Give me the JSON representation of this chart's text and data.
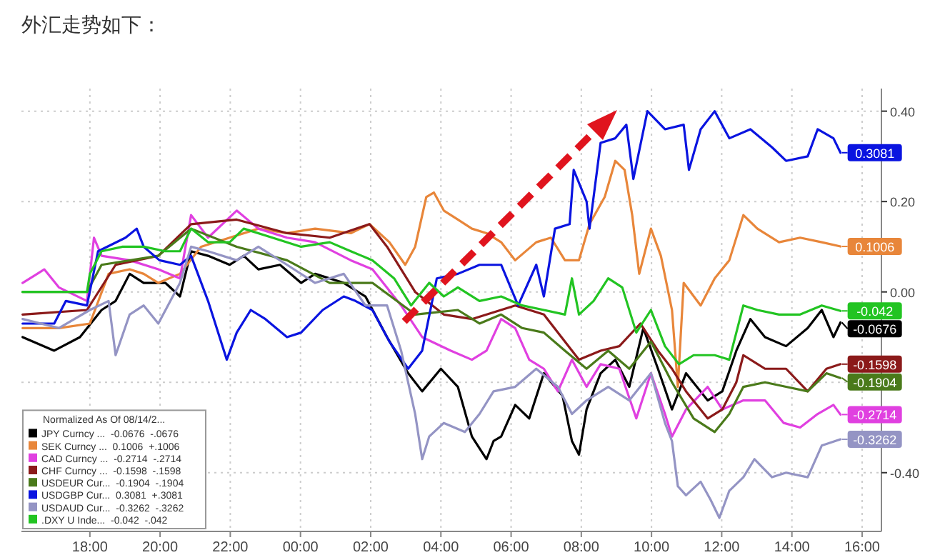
{
  "chart_data": {
    "type": "line",
    "title": "外汇走势如下：",
    "legend_title": "Normalized As Of 08/14/2...",
    "legend": "bottom left",
    "grid": true,
    "xlim": [
      "--08-14T16:03",
      "--08-15T16:33"
    ],
    "ylim": [
      -0.53,
      0.45
    ],
    "xticks": [
      {
        "value": "--08-14T18:00",
        "label": "18:00"
      },
      {
        "value": "--08-14T20:00",
        "label": "20:00"
      },
      {
        "value": "--08-14T22:00",
        "label": "22:00"
      },
      {
        "value": "--08-15T00:00",
        "label": "00:00"
      },
      {
        "value": "--08-15T02:00",
        "label": "02:00"
      },
      {
        "value": "--08-15T04:00",
        "label": "04:00"
      },
      {
        "value": "--08-15T06:00",
        "label": "06:00"
      },
      {
        "value": "--08-15T08:00",
        "label": "08:00"
      },
      {
        "value": "--08-15T10:00",
        "label": "10:00"
      },
      {
        "value": "--08-15T12:00",
        "label": "12:00"
      },
      {
        "value": "--08-15T14:00",
        "label": "14:00"
      },
      {
        "value": "--08-15T16:00",
        "label": "16:00"
      }
    ],
    "yticks": [
      {
        "value": 0.4,
        "label": "0.40"
      },
      {
        "value": 0.2,
        "label": "0.20"
      },
      {
        "value": 0,
        "label": "0.00"
      },
      {
        "value": -0.2,
        "label": null
      },
      {
        "value": -0.4,
        "label": "-0.40"
      }
    ],
    "series": [
      {
        "name": "JPY Curncy ...  -0.0676  -.0676",
        "color": "#000000",
        "x": [
          "--08-14T16:05",
          "--08-14T16:59",
          "--08-14T17:43",
          "--08-14T18:20",
          "--08-14T18:44",
          "--08-14T19:08",
          "--08-14T19:32",
          "--08-14T20:09",
          "--08-14T20:34",
          "--08-14T20:53",
          "--08-14T21:22",
          "--08-14T21:59",
          "--08-14T22:23",
          "--08-14T22:48",
          "--08-14T23:25",
          "--08-15T00:01",
          "--08-15T00:25",
          "--08-15T01:14",
          "--08-15T01:51",
          "--08-15T02:28",
          "--08-15T03:04",
          "--08-15T03:28",
          "--08-15T04:00",
          "--08-15T04:29",
          "--08-15T04:53",
          "--08-15T05:18",
          "--08-15T05:30",
          "--08-15T05:43",
          "--08-15T06:07",
          "--08-15T06:31",
          "--08-15T06:56",
          "--08-15T07:28",
          "--08-15T07:44",
          "--08-15T07:56",
          "--08-15T08:09",
          "--08-15T08:33",
          "--08-15T08:58",
          "--08-15T09:22",
          "--08-15T09:46",
          "--08-15T10:11",
          "--08-15T10:35",
          "--08-15T10:59",
          "--08-15T11:36",
          "--08-15T12:01",
          "--08-15T12:25",
          "--08-15T12:49",
          "--08-15T13:14",
          "--08-15T13:50",
          "--08-15T14:27",
          "--08-15T14:51",
          "--08-15T15:11",
          "--08-15T15:23"
        ],
        "values": [
          -0.1,
          -0.13,
          -0.1,
          -0.04,
          -0.02,
          0.04,
          0.02,
          0.02,
          -0.01,
          0.09,
          0.08,
          0.06,
          0.08,
          0.05,
          0.06,
          0.02,
          0.04,
          0.02,
          -0.01,
          -0.1,
          -0.18,
          -0.22,
          -0.17,
          -0.21,
          -0.32,
          -0.37,
          -0.33,
          -0.32,
          -0.25,
          -0.28,
          -0.18,
          -0.23,
          -0.33,
          -0.36,
          -0.26,
          -0.18,
          -0.15,
          -0.21,
          -0.08,
          -0.17,
          -0.26,
          -0.18,
          -0.24,
          -0.22,
          -0.13,
          -0.06,
          -0.1,
          -0.12,
          -0.08,
          -0.04,
          -0.1,
          -0.0676
        ],
        "value_labels": [
          null,
          null,
          null,
          null,
          null,
          null,
          null,
          null,
          null,
          null,
          null,
          null,
          null,
          null,
          null,
          null,
          null,
          null,
          null,
          null,
          null,
          null,
          null,
          null,
          null,
          null,
          null,
          null,
          null,
          null,
          null,
          null,
          null,
          null,
          null,
          null,
          null,
          null,
          null,
          null,
          null,
          null,
          null,
          null,
          null,
          null,
          null,
          null,
          null,
          null,
          null,
          "-0.0676"
        ]
      },
      {
        "name": "SEK Curncy ...  0.1006  +.1006",
        "color": "#e8863a",
        "x": [
          "--08-14T16:05",
          "--08-14T17:07",
          "--08-14T18:00",
          "--08-14T18:32",
          "--08-14T19:08",
          "--08-14T19:32",
          "--08-14T19:57",
          "--08-14T20:34",
          "--08-14T21:10",
          "--08-14T21:59",
          "--08-14T22:48",
          "--08-14T23:37",
          "--08-15T00:25",
          "--08-15T01:26",
          "--08-15T01:58",
          "--08-15T02:32",
          "--08-15T02:59",
          "--08-15T03:16",
          "--08-15T03:35",
          "--08-15T03:48",
          "--08-15T04:05",
          "--08-15T04:29",
          "--08-15T04:53",
          "--08-15T05:18",
          "--08-15T05:43",
          "--08-15T06:07",
          "--08-15T06:43",
          "--08-15T07:08",
          "--08-15T07:32",
          "--08-15T07:56",
          "--08-15T08:14",
          "--08-15T08:40",
          "--08-15T08:58",
          "--08-15T09:14",
          "--08-15T09:27",
          "--08-15T09:39",
          "--08-15T09:59",
          "--08-15T10:16",
          "--08-15T10:35",
          "--08-15T10:45",
          "--08-15T10:55",
          "--08-15T11:24",
          "--08-15T11:48",
          "--08-15T12:13",
          "--08-15T12:37",
          "--08-15T13:01",
          "--08-15T13:38",
          "--08-15T14:14",
          "--08-15T14:51",
          "--08-15T15:23"
        ],
        "values": [
          -0.08,
          -0.08,
          -0.07,
          0.04,
          0.05,
          0.04,
          0.02,
          0.04,
          0.1,
          0.12,
          0.14,
          0.13,
          0.14,
          0.13,
          0.15,
          0.11,
          0.06,
          0.1,
          0.21,
          0.22,
          0.18,
          0.16,
          0.14,
          0.13,
          0.11,
          0.07,
          0.11,
          0.12,
          0.07,
          0.07,
          0.15,
          0.21,
          0.29,
          0.27,
          0.17,
          0.04,
          0.14,
          0.08,
          -0.04,
          -0.21,
          0.02,
          -0.03,
          0.03,
          0.07,
          0.17,
          0.14,
          0.11,
          0.12,
          0.11,
          0.1006
        ],
        "value_labels": [
          null,
          null,
          null,
          null,
          null,
          null,
          null,
          null,
          null,
          null,
          null,
          null,
          null,
          null,
          null,
          null,
          null,
          null,
          null,
          null,
          null,
          null,
          null,
          null,
          null,
          null,
          null,
          null,
          null,
          null,
          null,
          null,
          null,
          null,
          null,
          null,
          null,
          null,
          null,
          null,
          null,
          null,
          null,
          null,
          null,
          null,
          null,
          null,
          null,
          "0.1006"
        ]
      },
      {
        "name": "CAD Curncy ...  -0.2714  -.2714",
        "color": "#e040e0",
        "x": [
          "--08-14T16:05",
          "--08-14T16:30",
          "--08-14T16:42",
          "--08-14T17:07",
          "--08-14T17:55",
          "--08-14T18:07",
          "--08-14T18:20",
          "--08-14T19:08",
          "--08-14T19:57",
          "--08-14T20:34",
          "--08-14T20:53",
          "--08-14T21:22",
          "--08-14T22:11",
          "--08-14T22:48",
          "--08-14T23:37",
          "--08-15T00:25",
          "--08-15T01:26",
          "--08-15T02:03",
          "--08-15T02:52",
          "--08-15T03:28",
          "--08-15T04:17",
          "--08-15T04:53",
          "--08-15T05:18",
          "--08-15T05:43",
          "--08-15T06:07",
          "--08-15T06:31",
          "--08-15T06:56",
          "--08-15T07:20",
          "--08-15T07:44",
          "--08-15T08:09",
          "--08-15T08:33",
          "--08-15T09:05",
          "--08-15T09:34",
          "--08-15T09:59",
          "--08-15T10:23",
          "--08-15T10:35",
          "--08-15T10:59",
          "--08-15T11:36",
          "--08-15T12:01",
          "--08-15T12:37",
          "--08-15T13:14",
          "--08-15T13:46",
          "--08-15T14:14",
          "--08-15T14:44",
          "--08-15T15:11",
          "--08-15T15:23"
        ],
        "values": [
          0.02,
          0.04,
          0.05,
          0.01,
          -0.02,
          0.12,
          0.08,
          0.07,
          0.05,
          0.03,
          0.17,
          0.12,
          0.18,
          0.14,
          0.12,
          0.11,
          0.07,
          0.05,
          -0.03,
          -0.1,
          -0.13,
          -0.15,
          -0.13,
          -0.06,
          -0.08,
          -0.15,
          -0.17,
          -0.22,
          -0.15,
          -0.21,
          -0.16,
          -0.17,
          -0.28,
          -0.18,
          -0.27,
          -0.32,
          -0.26,
          -0.21,
          -0.26,
          -0.24,
          -0.24,
          -0.29,
          -0.3,
          -0.27,
          -0.25,
          -0.2714
        ],
        "value_labels": [
          null,
          null,
          null,
          null,
          null,
          null,
          null,
          null,
          null,
          null,
          null,
          null,
          null,
          null,
          null,
          null,
          null,
          null,
          null,
          null,
          null,
          null,
          null,
          null,
          null,
          null,
          null,
          null,
          null,
          null,
          null,
          null,
          null,
          null,
          null,
          null,
          null,
          null,
          null,
          null,
          null,
          null,
          null,
          null,
          null,
          "-0.2714"
        ]
      },
      {
        "name": "CHF Curncy ...  -0.1598  -.1598",
        "color": "#8b1a1a",
        "x": [
          "--08-14T16:05",
          "--08-14T17:55",
          "--08-14T18:44",
          "--08-14T19:57",
          "--08-14T20:53",
          "--08-14T22:11",
          "--08-14T23:37",
          "--08-15T00:50",
          "--08-15T01:58",
          "--08-15T02:28",
          "--08-15T03:16",
          "--08-15T04:05",
          "--08-15T04:53",
          "--08-15T06:07",
          "--08-15T06:56",
          "--08-15T07:56",
          "--08-15T08:33",
          "--08-15T09:05",
          "--08-15T09:41",
          "--08-15T10:11",
          "--08-15T10:35",
          "--08-15T10:59",
          "--08-15T11:36",
          "--08-15T12:01",
          "--08-15T12:25",
          "--08-15T12:37",
          "--08-15T13:14",
          "--08-15T13:50",
          "--08-15T14:27",
          "--08-15T14:59",
          "--08-15T15:23"
        ],
        "values": [
          -0.05,
          -0.04,
          0.06,
          0.08,
          0.15,
          0.16,
          0.13,
          0.12,
          0.15,
          0.1,
          0.0,
          -0.05,
          -0.06,
          -0.03,
          -0.05,
          -0.15,
          -0.13,
          -0.12,
          -0.07,
          -0.13,
          -0.17,
          -0.22,
          -0.28,
          -0.26,
          -0.2,
          -0.14,
          -0.17,
          -0.17,
          -0.22,
          -0.17,
          -0.1598
        ],
        "value_labels": [
          null,
          null,
          null,
          null,
          null,
          null,
          null,
          null,
          null,
          null,
          null,
          null,
          null,
          null,
          null,
          null,
          null,
          null,
          null,
          null,
          null,
          null,
          null,
          null,
          null,
          null,
          null,
          null,
          null,
          null,
          "-0.1598"
        ]
      },
      {
        "name": "USDEUR Cur...  -0.1904  -.1904",
        "color": "#4a7a1a",
        "x": [
          "--08-14T16:05",
          "--08-14T17:55",
          "--08-14T18:20",
          "--08-14T19:57",
          "--08-14T20:53",
          "--08-14T22:11",
          "--08-14T23:37",
          "--08-15T00:50",
          "--08-15T02:03",
          "--08-15T03:16",
          "--08-15T04:29",
          "--08-15T05:06",
          "--08-15T05:43",
          "--08-15T06:19",
          "--08-15T06:56",
          "--08-15T07:32",
          "--08-15T08:09",
          "--08-15T08:46",
          "--08-15T09:22",
          "--08-15T09:59",
          "--08-15T10:35",
          "--08-15T11:12",
          "--08-15T11:48",
          "--08-15T12:13",
          "--08-15T12:37",
          "--08-15T13:14",
          "--08-15T13:50",
          "--08-15T14:27",
          "--08-15T14:59",
          "--08-15T15:23"
        ],
        "values": [
          0.0,
          0.0,
          0.06,
          0.08,
          0.14,
          0.1,
          0.07,
          0.02,
          0.02,
          -0.05,
          -0.04,
          -0.07,
          -0.05,
          -0.08,
          -0.09,
          -0.13,
          -0.17,
          -0.13,
          -0.17,
          -0.11,
          -0.2,
          -0.28,
          -0.31,
          -0.27,
          -0.21,
          -0.2,
          -0.21,
          -0.22,
          -0.18,
          -0.1904
        ],
        "value_labels": [
          null,
          null,
          null,
          null,
          null,
          null,
          null,
          null,
          null,
          null,
          null,
          null,
          null,
          null,
          null,
          null,
          null,
          null,
          null,
          null,
          null,
          null,
          null,
          null,
          null,
          null,
          null,
          null,
          null,
          "-0.1904"
        ]
      },
      {
        "name": "USDGBP Cur...  0.3081  +.3081",
        "color": "#0a14e0",
        "x": [
          "--08-14T16:05",
          "--08-14T16:59",
          "--08-14T17:19",
          "--08-14T17:55",
          "--08-14T18:14",
          "--08-14T19:01",
          "--08-14T19:20",
          "--08-14T19:32",
          "--08-14T19:59",
          "--08-14T20:34",
          "--08-14T20:53",
          "--08-14T21:22",
          "--08-14T21:54",
          "--08-14T22:11",
          "--08-14T22:35",
          "--08-14T23:00",
          "--08-14T23:37",
          "--08-15T00:01",
          "--08-15T00:38",
          "--08-15T01:14",
          "--08-15T01:34",
          "--08-15T02:03",
          "--08-15T02:32",
          "--08-15T03:04",
          "--08-15T03:28",
          "--08-15T03:53",
          "--08-15T04:29",
          "--08-15T05:06",
          "--08-15T05:43",
          "--08-15T06:12",
          "--08-15T06:43",
          "--08-15T06:56",
          "--08-15T07:15",
          "--08-15T07:40",
          "--08-15T07:47",
          "--08-15T08:09",
          "--08-15T08:14",
          "--08-15T08:33",
          "--08-15T08:58",
          "--08-15T09:17",
          "--08-15T09:29",
          "--08-15T09:53",
          "--08-15T10:23",
          "--08-15T10:55",
          "--08-15T11:04",
          "--08-15T11:24",
          "--08-15T11:48",
          "--08-15T12:13",
          "--08-15T12:49",
          "--08-15T13:26",
          "--08-15T13:50",
          "--08-15T14:27",
          "--08-15T14:44",
          "--08-15T15:11",
          "--08-15T15:23"
        ],
        "values": [
          -0.07,
          -0.07,
          -0.02,
          -0.03,
          0.09,
          0.12,
          0.14,
          0.1,
          0.07,
          0.06,
          0.08,
          -0.02,
          -0.15,
          -0.09,
          -0.04,
          -0.06,
          -0.1,
          -0.09,
          -0.04,
          -0.01,
          -0.02,
          -0.04,
          -0.11,
          -0.17,
          -0.13,
          0.03,
          0.04,
          0.06,
          0.06,
          -0.03,
          0.06,
          -0.01,
          0.14,
          0.15,
          0.27,
          0.2,
          0.14,
          0.33,
          0.34,
          0.37,
          0.25,
          0.4,
          0.36,
          0.37,
          0.27,
          0.36,
          0.4,
          0.34,
          0.36,
          0.32,
          0.29,
          0.3,
          0.36,
          0.34,
          0.3081
        ],
        "value_labels": [
          null,
          null,
          null,
          null,
          null,
          null,
          null,
          null,
          null,
          null,
          null,
          null,
          null,
          null,
          null,
          null,
          null,
          null,
          null,
          null,
          null,
          null,
          null,
          null,
          null,
          null,
          null,
          null,
          null,
          null,
          null,
          null,
          null,
          null,
          null,
          null,
          null,
          null,
          null,
          null,
          null,
          null,
          null,
          null,
          null,
          null,
          null,
          null,
          null,
          null,
          null,
          null,
          null,
          null,
          "0.3081"
        ]
      },
      {
        "name": "USDAUD Cur...  -0.3262  -.3262",
        "color": "#9494c4",
        "x": [
          "--08-14T16:05",
          "--08-14T17:07",
          "--08-14T18:00",
          "--08-14T18:32",
          "--08-14T18:44",
          "--08-14T19:08",
          "--08-14T19:32",
          "--08-14T19:57",
          "--08-14T20:34",
          "--08-14T20:53",
          "--08-14T21:22",
          "--08-14T22:11",
          "--08-14T22:48",
          "--08-14T23:37",
          "--08-15T00:25",
          "--08-15T01:14",
          "--08-15T01:51",
          "--08-15T02:28",
          "--08-15T02:52",
          "--08-15T03:16",
          "--08-15T03:28",
          "--08-15T03:40",
          "--08-15T04:05",
          "--08-15T04:41",
          "--08-15T05:06",
          "--08-15T05:30",
          "--08-15T06:07",
          "--08-15T06:43",
          "--08-15T07:20",
          "--08-15T07:44",
          "--08-15T08:09",
          "--08-15T08:46",
          "--08-15T09:22",
          "--08-15T09:59",
          "--08-15T10:23",
          "--08-15T10:35",
          "--08-15T10:45",
          "--08-15T10:59",
          "--08-15T11:24",
          "--08-15T11:41",
          "--08-15T11:56",
          "--08-15T12:13",
          "--08-15T12:37",
          "--08-15T12:56",
          "--08-15T13:26",
          "--08-15T13:50",
          "--08-15T14:27",
          "--08-15T14:51",
          "--08-15T15:23"
        ],
        "values": [
          -0.06,
          -0.08,
          -0.04,
          -0.02,
          -0.14,
          -0.05,
          -0.03,
          -0.07,
          0.02,
          0.1,
          0.09,
          0.07,
          0.1,
          0.06,
          0.02,
          0.04,
          -0.03,
          -0.03,
          -0.13,
          -0.27,
          -0.37,
          -0.32,
          -0.29,
          -0.31,
          -0.27,
          -0.22,
          -0.21,
          -0.17,
          -0.21,
          -0.27,
          -0.24,
          -0.21,
          -0.24,
          -0.18,
          -0.29,
          -0.33,
          -0.43,
          -0.45,
          -0.42,
          -0.46,
          -0.5,
          -0.44,
          -0.41,
          -0.37,
          -0.41,
          -0.4,
          -0.41,
          -0.34,
          -0.3262
        ],
        "value_labels": [
          null,
          null,
          null,
          null,
          null,
          null,
          null,
          null,
          null,
          null,
          null,
          null,
          null,
          null,
          null,
          null,
          null,
          null,
          null,
          null,
          null,
          null,
          null,
          null,
          null,
          null,
          null,
          null,
          null,
          null,
          null,
          null,
          null,
          null,
          null,
          null,
          null,
          null,
          null,
          null,
          null,
          null,
          null,
          null,
          null,
          null,
          null,
          null,
          "-0.3262"
        ]
      },
      {
        "name": ".DXY U Inde...  -0.042  -.042",
        "color": "#22c422",
        "x": [
          "--08-14T16:05",
          "--08-14T16:59",
          "--08-14T17:55",
          "--08-14T18:00",
          "--08-14T18:20",
          "--08-14T18:56",
          "--08-14T19:32",
          "--08-14T20:09",
          "--08-14T20:34",
          "--08-14T20:53",
          "--08-14T21:22",
          "--08-14T21:59",
          "--08-14T22:23",
          "--08-14T23:12",
          "--08-15T00:01",
          "--08-15T00:50",
          "--08-15T01:26",
          "--08-15T02:03",
          "--08-15T02:40",
          "--08-15T03:09",
          "--08-15T03:40",
          "--08-15T04:05",
          "--08-15T04:29",
          "--08-15T05:06",
          "--08-15T05:43",
          "--08-15T06:19",
          "--08-15T06:56",
          "--08-15T07:32",
          "--08-15T07:44",
          "--08-15T07:56",
          "--08-15T08:21",
          "--08-15T08:46",
          "--08-15T09:10",
          "--08-15T09:34",
          "--08-15T09:59",
          "--08-15T10:23",
          "--08-15T10:47",
          "--08-15T11:12",
          "--08-15T11:48",
          "--08-15T12:13",
          "--08-15T12:37",
          "--08-15T13:01",
          "--08-15T13:38",
          "--08-15T14:14",
          "--08-15T14:51",
          "--08-15T15:23"
        ],
        "values": [
          0.0,
          0.0,
          0.0,
          0.04,
          0.09,
          0.1,
          0.1,
          0.09,
          0.09,
          0.14,
          0.11,
          0.11,
          0.14,
          0.12,
          0.1,
          0.11,
          0.09,
          0.07,
          0.03,
          -0.03,
          0.02,
          -0.01,
          0.01,
          -0.02,
          -0.01,
          -0.03,
          -0.04,
          -0.05,
          0.03,
          -0.05,
          -0.02,
          0.03,
          0.01,
          -0.09,
          -0.04,
          -0.12,
          -0.16,
          -0.14,
          -0.14,
          -0.15,
          -0.03,
          -0.04,
          -0.05,
          -0.05,
          -0.03,
          -0.042
        ],
        "value_labels": [
          null,
          null,
          null,
          null,
          null,
          null,
          null,
          null,
          null,
          null,
          null,
          null,
          null,
          null,
          null,
          null,
          null,
          null,
          null,
          null,
          null,
          null,
          null,
          null,
          null,
          null,
          null,
          null,
          null,
          null,
          null,
          null,
          null,
          null,
          null,
          null,
          null,
          null,
          null,
          null,
          null,
          null,
          null,
          null,
          null,
          "-0.042"
        ]
      }
    ]
  }
}
